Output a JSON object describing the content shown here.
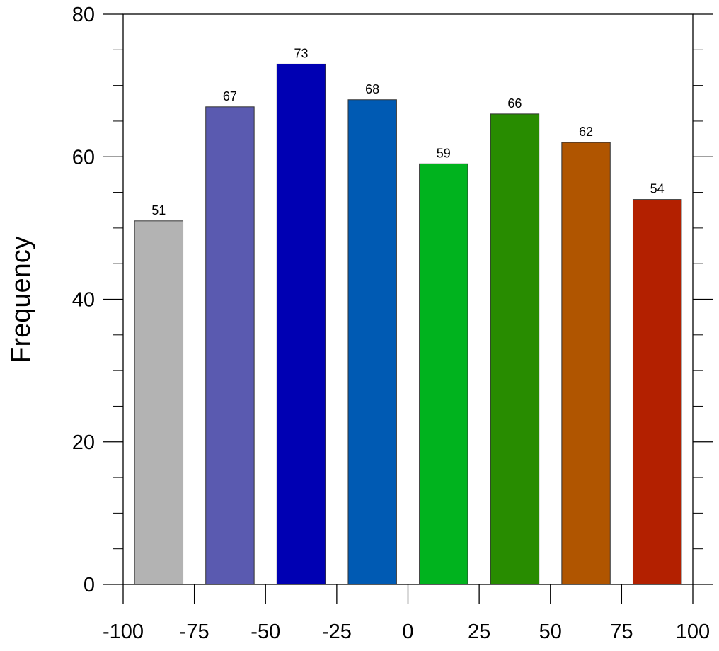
{
  "chart_data": {
    "type": "bar",
    "title": "",
    "xlabel": "",
    "ylabel": "Frequency",
    "bin_edges": [
      -100,
      -75,
      -50,
      -25,
      0,
      25,
      50,
      75,
      100
    ],
    "bin_centers": [
      -87.5,
      -62.5,
      -37.5,
      -12.5,
      12.5,
      37.5,
      62.5,
      87.5
    ],
    "values": [
      51,
      67,
      73,
      68,
      59,
      66,
      62,
      54
    ],
    "data_labels": [
      "51",
      "67",
      "73",
      "68",
      "59",
      "66",
      "62",
      "54"
    ],
    "colors": [
      "#b3b3b3",
      "#5a5ab0",
      "#0000b3",
      "#005ab3",
      "#00b31e",
      "#288c00",
      "#b05500",
      "#b32000"
    ],
    "xlim": [
      -100,
      100
    ],
    "ylim": [
      0,
      80
    ],
    "x_ticks": [
      -100,
      -75,
      -50,
      -25,
      0,
      25,
      50,
      75,
      100
    ],
    "x_tick_labels": [
      "-100",
      "-75",
      "-50",
      "-25",
      "0",
      "25",
      "50",
      "75",
      "100"
    ],
    "y_ticks": [
      0,
      20,
      40,
      60,
      80
    ],
    "y_tick_labels": [
      "0",
      "20",
      "40",
      "60",
      "80"
    ],
    "y_minor_step": 5,
    "grid": false,
    "legend": "none"
  }
}
